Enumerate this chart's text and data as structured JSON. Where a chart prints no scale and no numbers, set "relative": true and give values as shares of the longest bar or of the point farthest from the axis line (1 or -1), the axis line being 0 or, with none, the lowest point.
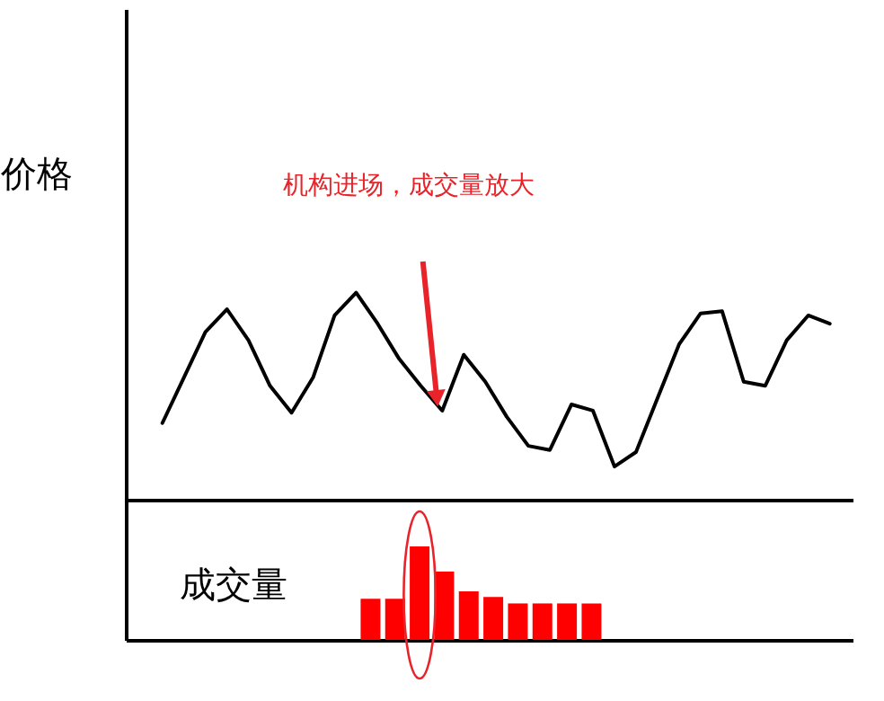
{
  "chart_data": [
    {
      "type": "line",
      "ylabel": "价格",
      "relative": true,
      "legend": false,
      "grid": false,
      "marker": "none",
      "line_style": "solid",
      "categories": [
        null,
        null,
        null,
        null,
        null,
        null,
        null,
        null,
        null,
        null,
        null,
        null,
        null,
        null,
        null,
        null,
        null,
        null,
        null,
        null,
        null,
        null,
        null,
        null,
        null,
        null,
        null,
        null,
        null,
        null,
        null,
        null
      ],
      "series": [
        {
          "color": "#000000",
          "values": [
            0.37,
            0.59,
            0.81,
            0.92,
            0.77,
            0.55,
            0.42,
            0.59,
            0.89,
            1.0,
            0.85,
            0.68,
            0.55,
            0.43,
            0.7,
            0.57,
            0.4,
            0.26,
            0.24,
            0.46,
            0.43,
            0.16,
            0.23,
            0.49,
            0.75,
            0.9,
            0.91,
            0.57,
            0.55,
            0.77,
            0.89,
            0.85
          ]
        }
      ],
      "annotations": [
        "机构进场，成交量放大"
      ]
    },
    {
      "type": "bar",
      "ylabel": "成交量",
      "relative": true,
      "legend": false,
      "grid": false,
      "categories": [
        null,
        null,
        null,
        null,
        null,
        null,
        null,
        null,
        null,
        null
      ],
      "series": [
        {
          "color": "#ff0000",
          "values": [
            0.44,
            0.44,
            1.0,
            0.73,
            0.52,
            0.46,
            0.39,
            0.39,
            0.39,
            0.39
          ]
        }
      ]
    }
  ]
}
